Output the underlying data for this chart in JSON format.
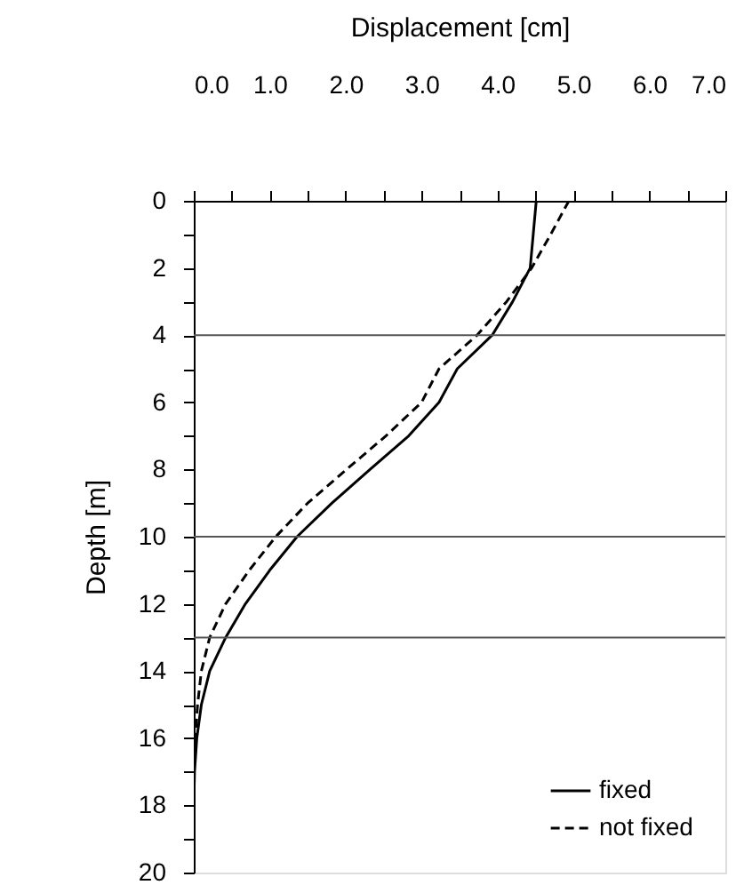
{
  "chart_data": {
    "type": "line",
    "xlabel": "Displacement [cm]",
    "ylabel": "Depth [m]",
    "xlim": [
      0,
      7
    ],
    "ylim": [
      20,
      0
    ],
    "xticks": [
      {
        "value": 0,
        "label": "0.0"
      },
      {
        "value": 0.5,
        "label": null
      },
      {
        "value": 1,
        "label": "1.0"
      },
      {
        "value": 1.5,
        "label": null
      },
      {
        "value": 2,
        "label": "2.0"
      },
      {
        "value": 2.5,
        "label": null
      },
      {
        "value": 3,
        "label": "3.0"
      },
      {
        "value": 3.5,
        "label": null
      },
      {
        "value": 4,
        "label": "4.0"
      },
      {
        "value": 4.5,
        "label": null
      },
      {
        "value": 5,
        "label": "5.0"
      },
      {
        "value": 5.5,
        "label": null
      },
      {
        "value": 6,
        "label": "6.0"
      },
      {
        "value": 6.5,
        "label": null
      },
      {
        "value": 7,
        "label": "7.0"
      }
    ],
    "yticks": [
      0,
      {
        "value": 1,
        "label": null
      },
      2,
      {
        "value": 3,
        "label": null
      },
      4,
      {
        "value": 5,
        "label": null
      },
      6,
      {
        "value": 7,
        "label": null
      },
      8,
      {
        "value": 9,
        "label": null
      },
      10,
      {
        "value": 11,
        "label": null
      },
      12,
      {
        "value": 13,
        "label": null
      },
      14,
      {
        "value": 15,
        "label": null
      },
      16,
      {
        "value": 17,
        "label": null
      },
      18,
      {
        "value": 19,
        "label": null
      },
      20
    ],
    "series": [
      {
        "name": "fixed",
        "color": "#000000",
        "line_style": "solid",
        "x": [
          4.51,
          4.47,
          4.43,
          4.2,
          3.93,
          3.47,
          3.23,
          2.83,
          2.32,
          1.82,
          1.36,
          1.0,
          0.68,
          0.42,
          0.21,
          0.1,
          0.04,
          0.01,
          0,
          0,
          0
        ],
        "values": [
          0,
          1,
          2,
          3,
          4,
          5,
          6,
          7,
          8,
          9,
          10,
          11,
          12,
          13,
          14,
          15,
          16,
          17,
          18,
          19,
          20
        ]
      },
      {
        "name": "not fixed",
        "color": "#000000",
        "line_style": "dashed",
        "x": [
          4.94,
          4.7,
          4.45,
          4.12,
          3.73,
          3.23,
          3.0,
          2.53,
          2.01,
          1.5,
          1.08,
          0.73,
          0.42,
          0.21,
          0.1,
          0.05,
          0.02,
          0,
          0,
          0,
          0
        ],
        "values": [
          0,
          1,
          2,
          3,
          4,
          5,
          6,
          7,
          8,
          9,
          10,
          11,
          12,
          13,
          14,
          15,
          16,
          17,
          18,
          19,
          20
        ]
      }
    ],
    "ref_lines": [
      {
        "axis": "y",
        "value": 4,
        "label": null,
        "color": "#555555"
      },
      {
        "axis": "y",
        "value": 10,
        "label": null,
        "color": "#555555"
      },
      {
        "axis": "y",
        "value": 13,
        "label": null,
        "color": "#555555"
      }
    ],
    "grid": false,
    "legend": "bottom right",
    "marker": "none"
  }
}
